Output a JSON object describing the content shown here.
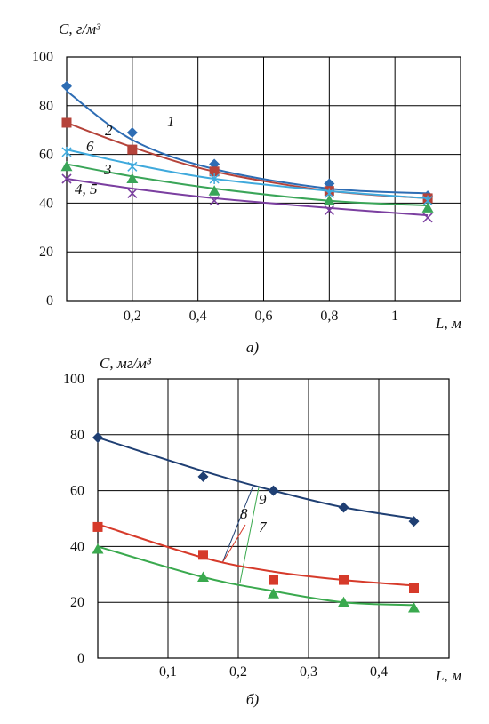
{
  "chart_data": [
    {
      "type": "line",
      "panel_label": "а)",
      "xlabel": "L, м",
      "ylabel": "С, г/м³",
      "xlim": [
        0,
        1.2
      ],
      "ylim": [
        0,
        100
      ],
      "xticks": [
        0.2,
        0.4,
        0.6,
        0.8,
        1.0
      ],
      "xtick_labels": [
        "0,2",
        "0,4",
        "0,6",
        "0,8",
        "1"
      ],
      "yticks": [
        0,
        20,
        40,
        60,
        80,
        100
      ],
      "ytick_labels": [
        "0",
        "20",
        "40",
        "60",
        "80",
        "100"
      ],
      "grid": true,
      "series": [
        {
          "name": "1",
          "color": "#2e6db4",
          "marker": "diamond",
          "x": [
            0,
            0.2,
            0.45,
            0.8,
            1.1
          ],
          "y": [
            88,
            69,
            56,
            48,
            43
          ],
          "fit_y": [
            86,
            66,
            54,
            46,
            44
          ]
        },
        {
          "name": "2",
          "color": "#b5433a",
          "marker": "square",
          "x": [
            0,
            0.2,
            0.45,
            0.8,
            1.1
          ],
          "y": [
            73,
            62,
            53,
            45,
            42
          ],
          "fit_y": [
            73,
            63,
            53,
            45,
            42
          ]
        },
        {
          "name": "6",
          "color": "#3fa9dc",
          "marker": "cross",
          "x": [
            0,
            0.2,
            0.45,
            0.8,
            1.1
          ],
          "y": [
            61,
            55,
            50,
            44,
            41
          ],
          "fit_y": [
            62,
            56,
            50,
            45,
            42
          ]
        },
        {
          "name": "3",
          "color": "#3aa558",
          "marker": "triangle",
          "x": [
            0,
            0.2,
            0.45,
            0.8,
            1.1
          ],
          "y": [
            55,
            50,
            45,
            41,
            38
          ],
          "fit_y": [
            56,
            51,
            46,
            41,
            39
          ]
        },
        {
          "name": "4, 5",
          "color": "#7b3fa0",
          "marker": "x",
          "x": [
            0,
            0.2,
            0.45,
            0.8,
            1.1
          ],
          "y": [
            50,
            44,
            41,
            37,
            34
          ],
          "fit_y": [
            50,
            46,
            42,
            38,
            35
          ]
        }
      ]
    },
    {
      "type": "line",
      "panel_label": "б)",
      "xlabel": "L, м",
      "ylabel": "С, мг/м³",
      "xlim": [
        0,
        0.5
      ],
      "ylim": [
        0,
        100
      ],
      "xticks": [
        0.1,
        0.2,
        0.3,
        0.4
      ],
      "xtick_labels": [
        "0,1",
        "0,2",
        "0,3",
        "0,4"
      ],
      "yticks": [
        0,
        20,
        40,
        60,
        80,
        100
      ],
      "ytick_labels": [
        "0",
        "20",
        "40",
        "60",
        "80",
        "100"
      ],
      "grid": true,
      "series": [
        {
          "name": "9",
          "color": "#1f3f73",
          "marker": "diamond",
          "x": [
            0,
            0.15,
            0.25,
            0.35,
            0.45
          ],
          "y": [
            79,
            65,
            60,
            54,
            49
          ],
          "fit_y": [
            79,
            67,
            60,
            54,
            50
          ]
        },
        {
          "name": "8",
          "color": "#d63a2a",
          "marker": "square",
          "x": [
            0,
            0.15,
            0.25,
            0.35,
            0.45
          ],
          "y": [
            47,
            37,
            28,
            28,
            25
          ],
          "fit_y": [
            48,
            36,
            31,
            28,
            26
          ]
        },
        {
          "name": "7",
          "color": "#3aa94e",
          "marker": "triangle",
          "x": [
            0,
            0.15,
            0.25,
            0.35,
            0.45
          ],
          "y": [
            39,
            29,
            23,
            20,
            18
          ],
          "fit_y": [
            40,
            29,
            24,
            20,
            19
          ]
        }
      ]
    }
  ]
}
